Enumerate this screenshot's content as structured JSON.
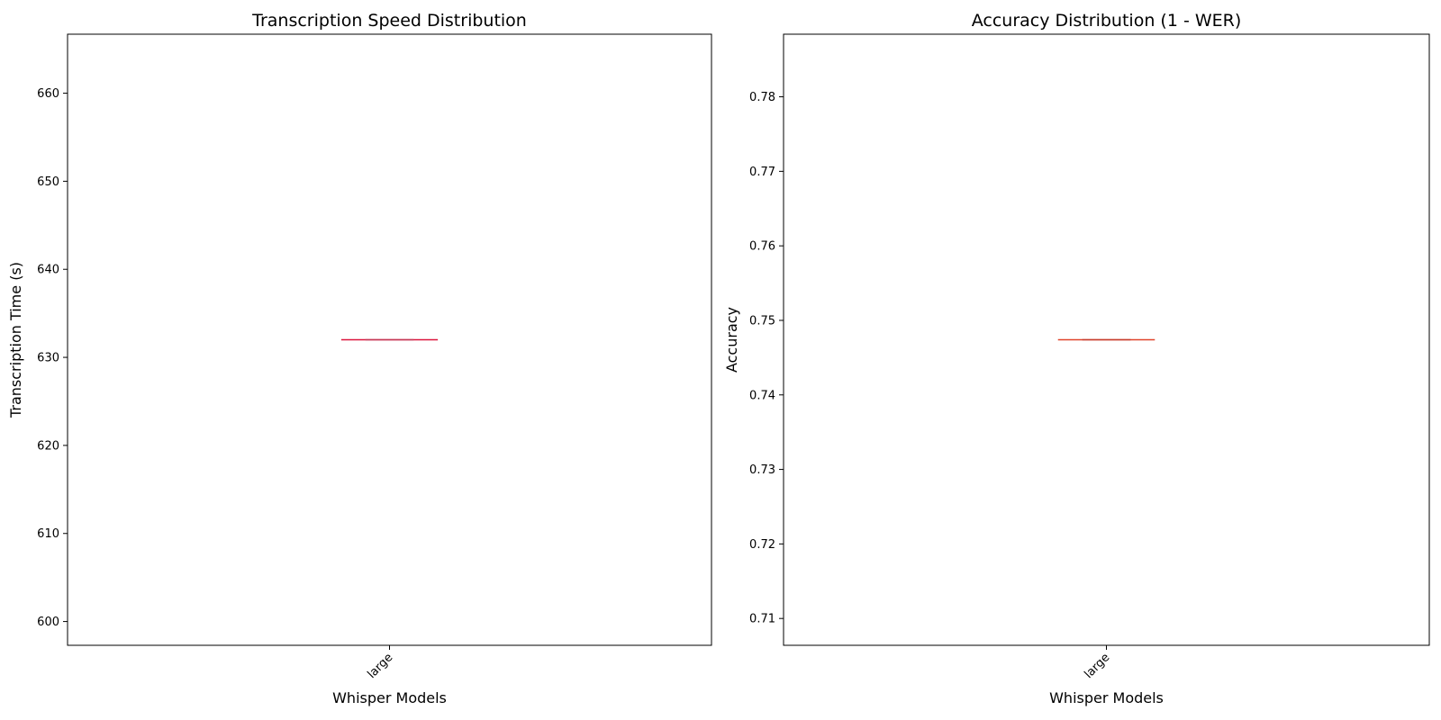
{
  "chart_data": [
    {
      "type": "box",
      "title": "Transcription Speed Distribution",
      "xlabel": "Whisper Models",
      "ylabel": "Transcription Time (s)",
      "categories": [
        "large"
      ],
      "values": [
        632
      ],
      "ylim": [
        597.3,
        666.7
      ],
      "yticks": [
        "600",
        "610",
        "620",
        "630",
        "640",
        "650",
        "660"
      ],
      "grid": false,
      "colors": {
        "box": "#dc143c",
        "median": "#c0405a"
      }
    },
    {
      "type": "box",
      "title": "Accuracy Distribution (1 - WER)",
      "xlabel": "Whisper Models",
      "ylabel": "Accuracy",
      "categories": [
        "large"
      ],
      "values": [
        0.7474
      ],
      "ylim": [
        0.7064,
        0.7884
      ],
      "yticks": [
        "0.71",
        "0.72",
        "0.73",
        "0.74",
        "0.75",
        "0.76",
        "0.77",
        "0.78"
      ],
      "grid": false,
      "colors": {
        "box": "#e0432b",
        "median": "#c23c2e"
      }
    }
  ]
}
